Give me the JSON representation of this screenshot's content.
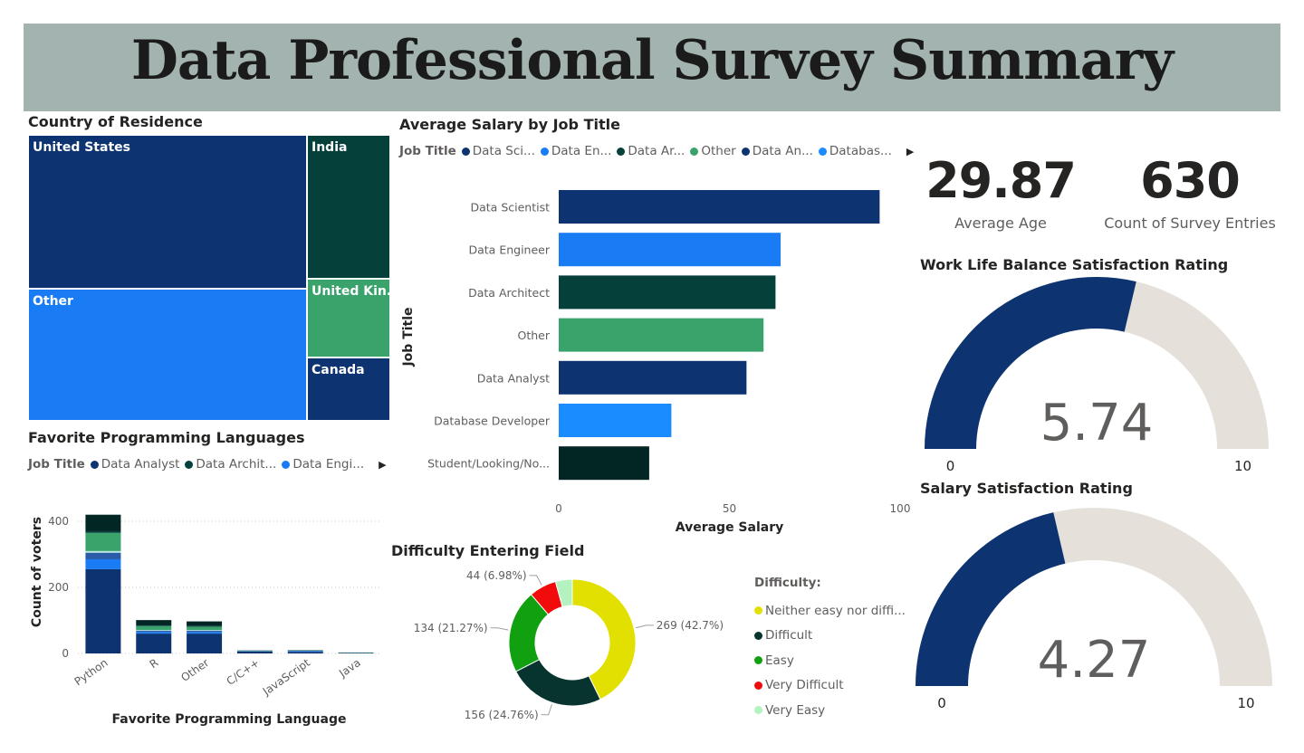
{
  "title": "Data Professional Survey Summary",
  "treemap": {
    "title": "Country of Residence",
    "cells": [
      {
        "label": "United States",
        "color": "#0d3471"
      },
      {
        "label": "Other",
        "color": "#1a7cf4"
      },
      {
        "label": "India",
        "color": "#06403b"
      },
      {
        "label": "United Kin...",
        "color": "#3aa36c"
      },
      {
        "label": "Canada",
        "color": "#0d3471"
      }
    ]
  },
  "salary_chart": {
    "title": "Average Salary by Job Title",
    "legend_title": "Job Title",
    "legend": [
      {
        "label": "Data Sci...",
        "color": "#0d3471"
      },
      {
        "label": "Data En...",
        "color": "#1a7cf4"
      },
      {
        "label": "Data Ar...",
        "color": "#06403b"
      },
      {
        "label": "Other",
        "color": "#3aa36c"
      },
      {
        "label": "Data An...",
        "color": "#0d3471"
      },
      {
        "label": "Databas...",
        "color": "#1a8cff"
      }
    ]
  },
  "languages_chart": {
    "title": "Favorite Programming Languages",
    "legend_title": "Job Title",
    "legend": [
      {
        "label": "Data Analyst",
        "color": "#0d3471"
      },
      {
        "label": "Data Archit...",
        "color": "#06403b"
      },
      {
        "label": "Data Engi...",
        "color": "#1a7cf4"
      }
    ]
  },
  "difficulty_chart": {
    "title": "Difficulty Entering Field",
    "legend_title": "Difficulty:"
  },
  "kpis": {
    "avg_age": {
      "value": "29.87",
      "label": "Average Age"
    },
    "count": {
      "value": "630",
      "label": "Count of Survey Entries"
    }
  },
  "gauges": {
    "work_life": {
      "title": "Work Life Balance Satisfaction Rating",
      "value": 5.74,
      "value_label": "5.74",
      "min": 0,
      "max": 10,
      "min_label": "0",
      "max_label": "10",
      "fill": "#0d3471",
      "track": "#e6e0da"
    },
    "salary": {
      "title": "Salary Satisfaction Rating",
      "value": 4.27,
      "value_label": "4.27",
      "min": 0,
      "max": 10,
      "min_label": "0",
      "max_label": "10",
      "fill": "#0d3471",
      "track": "#e6e0da"
    }
  },
  "chart_data": [
    {
      "type": "bar",
      "orientation": "horizontal",
      "title": "Average Salary by Job Title",
      "xlabel": "Average Salary",
      "ylabel": "Job Title",
      "xlim": [
        0,
        100
      ],
      "x_ticks": [
        "0",
        "50",
        "100"
      ],
      "categories": [
        "Data Scientist",
        "Data Engineer",
        "Data Architect",
        "Other",
        "Data Analyst",
        "Database Developer",
        "Student/Looking/No..."
      ],
      "values": [
        94,
        65,
        63.5,
        60,
        55,
        33,
        26.5
      ],
      "colors": [
        "#0d3471",
        "#1a7cf4",
        "#06403b",
        "#3aa36c",
        "#0d3471",
        "#1a8cff",
        "#022623"
      ],
      "grid": false
    },
    {
      "type": "bar",
      "stacked": true,
      "title": "Favorite Programming Languages",
      "xlabel": "Favorite Programming Language",
      "ylabel": "Count of voters",
      "ylim": [
        0,
        420
      ],
      "y_ticks": [
        "0",
        "200",
        "400"
      ],
      "categories": [
        "Python",
        "R",
        "Other",
        "C/C++",
        "JavaScript",
        "Java"
      ],
      "series": [
        {
          "name": "Data Analyst",
          "color": "#0d3471",
          "values": [
            255,
            60,
            60,
            6,
            5,
            2
          ]
        },
        {
          "name": "Data Engi...",
          "color": "#1a7cf4",
          "values": [
            30,
            5,
            5,
            1,
            2,
            0
          ]
        },
        {
          "color": "#2a5caa",
          "values": [
            20,
            4,
            4,
            0,
            1,
            0
          ]
        },
        {
          "color": "#b8e8e0",
          "values": [
            5,
            2,
            2,
            0,
            0,
            0
          ]
        },
        {
          "color": "#3aa36c",
          "values": [
            55,
            12,
            10,
            1,
            1,
            1
          ]
        },
        {
          "name": "Data Archit...",
          "color": "#06403b",
          "values": [
            5,
            2,
            2,
            0,
            0,
            0
          ]
        },
        {
          "color": "#022623",
          "values": [
            50,
            16,
            14,
            1,
            1,
            0
          ]
        }
      ],
      "grid": true
    },
    {
      "type": "pie",
      "donut": true,
      "title": "Difficulty Entering Field",
      "legend_title": "Difficulty:",
      "slices": [
        {
          "label": "Neither easy nor diffi...",
          "value": 269,
          "data_label": "269 (42.7%)",
          "color": "#e2e000"
        },
        {
          "label": "Difficult",
          "value": 156,
          "data_label": "156 (24.76%)",
          "color": "#07342f"
        },
        {
          "label": "Easy",
          "value": 134,
          "data_label": "134 (21.27%)",
          "color": "#10a010"
        },
        {
          "label": "Very Difficult",
          "value": 44,
          "data_label": "44 (6.98%)",
          "color": "#f20b0b"
        },
        {
          "label": "Very Easy",
          "value": 27,
          "data_label": "",
          "color": "#b4f2c0"
        }
      ]
    }
  ]
}
